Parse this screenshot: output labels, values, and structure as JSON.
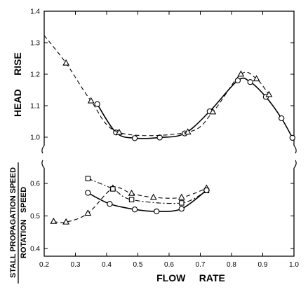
{
  "chart_data": [
    {
      "type": "line",
      "title": "",
      "ylabel": "HEAD     RISE",
      "xlabel": "",
      "xlim": [
        0.2,
        1.0
      ],
      "ylim": [
        0.94,
        1.4
      ],
      "yticks": [
        1.0,
        1.1,
        1.2,
        1.3,
        1.4
      ],
      "ytick_labels": [
        "1.0",
        "1.1",
        "1.2",
        "1.3",
        "1.4"
      ],
      "grid": false,
      "series": [
        {
          "marker": "circle",
          "line": "solid",
          "points": [
            [
              0.37,
              1.105
            ],
            [
              0.43,
              1.015
            ],
            [
              0.49,
              0.997
            ],
            [
              0.57,
              0.999
            ],
            [
              0.65,
              1.012
            ],
            [
              0.73,
              1.082
            ],
            [
              0.82,
              1.18
            ],
            [
              0.86,
              1.175
            ],
            [
              0.91,
              1.128
            ],
            [
              0.96,
              1.06
            ],
            [
              0.995,
              0.998
            ]
          ]
        },
        {
          "marker": "triangle",
          "line": "dashed",
          "points": [
            [
              0.2,
              1.323
            ],
            [
              0.27,
              1.235
            ],
            [
              0.35,
              1.115
            ],
            [
              0.44,
              1.015
            ],
            [
              0.66,
              1.016
            ],
            [
              0.74,
              1.08
            ],
            [
              0.83,
              1.2
            ],
            [
              0.88,
              1.185
            ],
            [
              0.92,
              1.135
            ]
          ]
        }
      ]
    },
    {
      "type": "line",
      "title": "",
      "ylabel_top": "STALL PROPAGATION SPEED",
      "ylabel_bottom": "ROTATION   SPEED",
      "xlabel": "FLOW     RATE",
      "xlim": [
        0.2,
        1.0
      ],
      "ylim": [
        0.4,
        0.7
      ],
      "xticks": [
        0.2,
        0.3,
        0.4,
        0.5,
        0.6,
        0.7,
        0.8,
        0.9,
        1.0
      ],
      "xtick_labels": [
        "0.2",
        "0.3",
        "0.4",
        "0.5",
        "0.6",
        "0.7",
        "0.8",
        "0.9",
        "1.0"
      ],
      "yticks": [
        0.4,
        0.5,
        0.6
      ],
      "ytick_labels": [
        "0.4",
        "0.5",
        "0.6"
      ],
      "grid": false,
      "series": [
        {
          "marker": "triangle",
          "line": "dashed",
          "points": [
            [
              0.23,
              0.483
            ],
            [
              0.27,
              0.481
            ],
            [
              0.34,
              0.508
            ],
            [
              0.42,
              0.585
            ],
            [
              0.48,
              0.569
            ],
            [
              0.55,
              0.557
            ],
            [
              0.64,
              0.557
            ],
            [
              0.72,
              0.585
            ]
          ]
        },
        {
          "marker": "square",
          "line": "dashdot",
          "points": [
            [
              0.34,
              0.615
            ],
            [
              0.42,
              0.583
            ],
            [
              0.48,
              0.55
            ],
            [
              0.64,
              0.54
            ],
            [
              0.72,
              0.578
            ]
          ]
        },
        {
          "marker": "circle",
          "line": "solid",
          "points": [
            [
              0.34,
              0.571
            ],
            [
              0.41,
              0.537
            ],
            [
              0.49,
              0.52
            ],
            [
              0.56,
              0.514
            ],
            [
              0.64,
              0.522
            ],
            [
              0.72,
              0.579
            ]
          ]
        }
      ]
    }
  ]
}
